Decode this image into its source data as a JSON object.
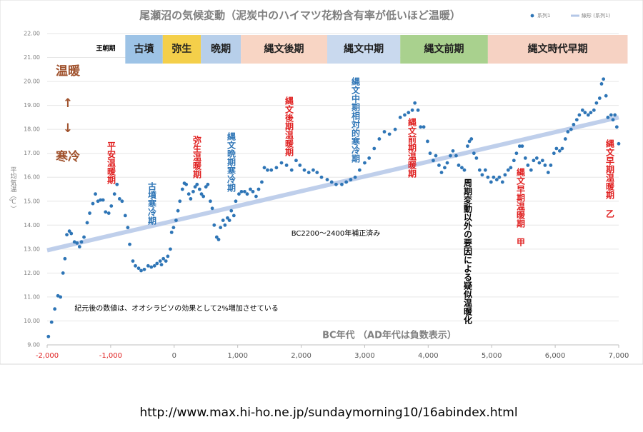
{
  "chart_data": {
    "type": "scatter",
    "title": "尾瀬沼の気候変動（泥炭中のハイマツ花粉含有率が低いほど温暖）",
    "xlabel": "BC年代 （AD年代は負数表示）",
    "ylabel": "平均気温（℃）",
    "xlim": [
      -2000,
      7000
    ],
    "ylim": [
      9,
      22
    ],
    "xticks": [
      {
        "value": -2000,
        "label": "-2,000"
      },
      {
        "value": -1000,
        "label": "-1,000"
      },
      0,
      {
        "value": 1000,
        "label": "1,000"
      },
      {
        "value": 2000,
        "label": "2,000"
      },
      {
        "value": 3000,
        "label": "3,000"
      },
      {
        "value": 4000,
        "label": "4,000"
      },
      {
        "value": 5000,
        "label": "5,000"
      },
      {
        "value": 6000,
        "label": "6,000"
      },
      {
        "value": 7000,
        "label": "7,000"
      }
    ],
    "yticks": [
      {
        "value": 9,
        "label": "9.00"
      },
      {
        "value": 10,
        "label": "10.00"
      },
      {
        "value": 11,
        "label": "11.00"
      },
      {
        "value": 12,
        "label": "12.00"
      },
      {
        "value": 13,
        "label": "13.00"
      },
      {
        "value": 14,
        "label": "14.00"
      },
      {
        "value": 15,
        "label": "15.00"
      },
      {
        "value": 16,
        "label": "16.00"
      },
      {
        "value": 17,
        "label": "17.00"
      },
      {
        "value": 18,
        "label": "18.00"
      },
      {
        "value": 19,
        "label": "19.00"
      },
      {
        "value": 20,
        "label": "20.00"
      },
      {
        "value": 21,
        "label": "21.00"
      },
      {
        "value": 22,
        "label": "22.00"
      }
    ],
    "negative_tick_color": "#e02020",
    "grid": true,
    "legend": "top-right",
    "series": [
      {
        "name": "系列1",
        "color": "#2e75b6",
        "kind": "points",
        "x": [
          -1980,
          -1930,
          -1880,
          -1830,
          -1790,
          -1750,
          -1720,
          -1690,
          -1650,
          -1620,
          -1570,
          -1530,
          -1490,
          -1460,
          -1420,
          -1370,
          -1330,
          -1280,
          -1240,
          -1200,
          -1160,
          -1120,
          -1080,
          -1030,
          -990,
          -940,
          -900,
          -860,
          -820,
          -770,
          -730,
          -700,
          -650,
          -610,
          -560,
          -520,
          -470,
          -410,
          -360,
          -310,
          -270,
          -220,
          -200,
          -170,
          -130,
          -100,
          -60,
          -40,
          -10,
          30,
          60,
          90,
          130,
          160,
          190,
          230,
          260,
          300,
          330,
          360,
          400,
          430,
          460,
          500,
          530,
          570,
          600,
          630,
          670,
          700,
          730,
          770,
          800,
          840,
          870,
          900,
          940,
          970,
          1020,
          1060,
          1110,
          1150,
          1200,
          1240,
          1290,
          1330,
          1380,
          1420,
          1470,
          1530,
          1610,
          1690,
          1770,
          1850,
          1920,
          1980,
          2050,
          2120,
          2190,
          2250,
          2320,
          2410,
          2480,
          2550,
          2640,
          2710,
          2780,
          2850,
          2920,
          3000,
          3070,
          3150,
          3230,
          3310,
          3390,
          3480,
          3560,
          3630,
          3690,
          3750,
          3790,
          3840,
          3880,
          3930,
          3990,
          4030,
          4080,
          4120,
          4170,
          4210,
          4260,
          4300,
          4350,
          4390,
          4440,
          4480,
          4530,
          4570,
          4620,
          4650,
          4680,
          4720,
          4760,
          4810,
          4850,
          4900,
          4940,
          4990,
          5030,
          5080,
          5120,
          5170,
          5210,
          5260,
          5300,
          5350,
          5390,
          5440,
          5480,
          5530,
          5570,
          5620,
          5660,
          5710,
          5750,
          5800,
          5840,
          5890,
          5930,
          5980,
          6020,
          6070,
          6110,
          6160,
          6200,
          6250,
          6290,
          6340,
          6380,
          6430,
          6470,
          6520,
          6560,
          6610,
          6650,
          6700,
          6730,
          6760,
          6800,
          6830,
          6880,
          6910,
          6940,
          6970,
          7000
        ],
        "values": [
          9.35,
          9.95,
          10.5,
          11.05,
          11.0,
          12.0,
          12.6,
          13.6,
          13.75,
          13.65,
          13.3,
          13.25,
          13.1,
          13.3,
          13.5,
          14.1,
          14.5,
          14.9,
          15.3,
          15.0,
          15.05,
          15.05,
          14.55,
          14.5,
          14.8,
          15.3,
          15.7,
          15.1,
          15.0,
          14.4,
          13.9,
          13.2,
          12.5,
          12.3,
          12.2,
          12.1,
          12.15,
          12.3,
          12.25,
          12.3,
          12.4,
          12.5,
          12.35,
          12.6,
          12.5,
          12.7,
          13.0,
          13.7,
          13.9,
          14.2,
          14.6,
          15.0,
          15.5,
          15.75,
          15.7,
          15.3,
          15.1,
          15.4,
          15.6,
          15.7,
          15.5,
          15.3,
          15.2,
          15.6,
          15.7,
          15.0,
          14.7,
          14.0,
          13.5,
          13.4,
          13.9,
          14.2,
          14.0,
          14.3,
          14.2,
          14.6,
          14.4,
          15.0,
          15.3,
          15.4,
          15.4,
          15.3,
          15.5,
          15.4,
          15.2,
          15.5,
          15.8,
          16.4,
          16.3,
          16.3,
          16.4,
          16.6,
          16.5,
          16.3,
          16.7,
          16.5,
          16.3,
          16.2,
          16.3,
          16.2,
          16.0,
          15.9,
          15.8,
          15.7,
          15.7,
          15.8,
          15.9,
          16.0,
          16.3,
          16.6,
          16.8,
          17.2,
          17.6,
          17.9,
          17.8,
          18.0,
          18.5,
          18.6,
          18.7,
          18.8,
          19.1,
          18.8,
          18.1,
          18.1,
          17.5,
          17.0,
          16.7,
          16.9,
          16.5,
          16.2,
          16.4,
          16.6,
          16.9,
          17.1,
          16.9,
          16.5,
          16.4,
          16.3,
          17.3,
          17.5,
          17.6,
          17.0,
          16.8,
          16.3,
          16.1,
          16.3,
          16.0,
          15.8,
          16.0,
          15.9,
          16.0,
          15.8,
          16.1,
          16.3,
          16.4,
          16.7,
          17.0,
          17.3,
          17.3,
          16.8,
          16.5,
          16.3,
          16.7,
          16.8,
          16.6,
          16.7,
          16.5,
          16.2,
          16.5,
          17.0,
          17.2,
          17.1,
          17.2,
          17.6,
          17.9,
          18.0,
          18.2,
          18.4,
          18.6,
          18.8,
          18.7,
          18.6,
          18.7,
          18.8,
          19.1,
          19.3,
          19.9,
          20.1,
          19.4,
          18.5,
          18.6,
          18.4,
          18.6,
          18.1,
          17.4
        ]
      },
      {
        "name": "線形 (系列1)",
        "color": "#b4c7e7",
        "kind": "line",
        "x": [
          -2000,
          7000
        ],
        "values": [
          12.95,
          18.5
        ]
      }
    ],
    "period_header": "王朝期",
    "periods": [
      {
        "label": "古墳",
        "start": -770,
        "end": -180,
        "color": "#9dc3e6"
      },
      {
        "label": "弥生",
        "start": -180,
        "end": 420,
        "color": "#f4cf4a"
      },
      {
        "label": "晩期",
        "start": 420,
        "end": 1050,
        "color": "#b7cfea"
      },
      {
        "label": "縄文後期",
        "start": 1050,
        "end": 2410,
        "color": "#f8d5c4"
      },
      {
        "label": "縄文中期",
        "start": 2410,
        "end": 3560,
        "color": "#c9d9ee"
      },
      {
        "label": "縄文前期",
        "start": 3560,
        "end": 4940,
        "color": "#a9d18e"
      },
      {
        "label": "縄文時代早期",
        "start": 4940,
        "end": 7140,
        "color": "#f6d2c3"
      }
    ],
    "annotations": [
      "温暖",
      "↑",
      "↓",
      "寒冷",
      "平安温暖期",
      "古墳寒冷期",
      "弥生温暖期",
      "縄文晩期寒冷期",
      "縄文後期温暖期",
      "縄文中期相対的寒冷期",
      "縄文前期温暖期",
      "周期変動以外の要因による疑似温暖化",
      "縄文早期温暖期 甲",
      "縄文早期温暖期 乙",
      "BC2200～2400年補正済み",
      "紀元後の数値は、オオシラビソの効果として2%増加させている"
    ]
  },
  "source_url": "http://www.max.hi-ho.ne.jp/sundaymorning10/16abindex.html"
}
